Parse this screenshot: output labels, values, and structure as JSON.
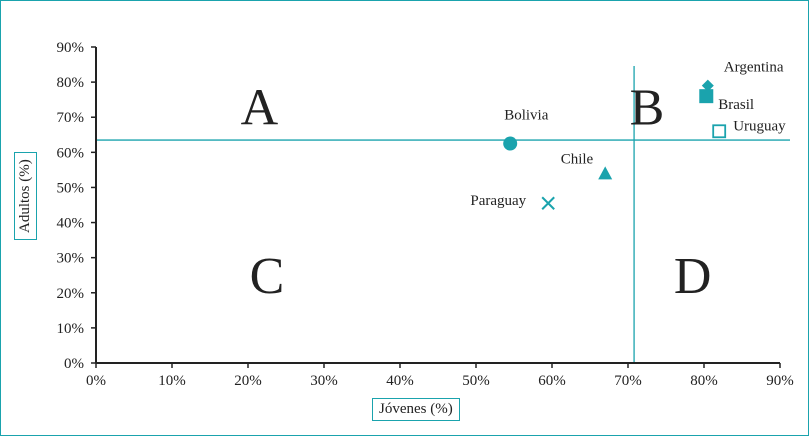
{
  "chart_data": {
    "type": "scatter",
    "xlabel": "Jóvenes (%)",
    "ylabel": "Adultos (%)",
    "xlim": [
      0,
      90
    ],
    "ylim": [
      0,
      90
    ],
    "x_ticks": [
      "0%",
      "10%",
      "20%",
      "30%",
      "40%",
      "50%",
      "60%",
      "70%",
      "80%",
      "90%"
    ],
    "y_ticks": [
      "0%",
      "10%",
      "20%",
      "30%",
      "40%",
      "50%",
      "60%",
      "70%",
      "80%",
      "90%"
    ],
    "points": [
      {
        "label": "Argentina",
        "x": 80.5,
        "y": 79,
        "marker": "diamond"
      },
      {
        "label": "Brasil",
        "x": 80.3,
        "y": 76,
        "marker": "square"
      },
      {
        "label": "Uruguay",
        "x": 82,
        "y": 66,
        "marker": "square-open"
      },
      {
        "label": "Bolivia",
        "x": 54.5,
        "y": 62.5,
        "marker": "circle"
      },
      {
        "label": "Chile",
        "x": 67,
        "y": 54,
        "marker": "triangle"
      },
      {
        "label": "Paraguay",
        "x": 59.5,
        "y": 45.5,
        "marker": "x"
      }
    ],
    "reference_lines": {
      "vertical_x": 70.8,
      "horizontal_y": 63.5
    },
    "quadrants": [
      {
        "label": "A",
        "x": 21.5,
        "y": 73
      },
      {
        "label": "B",
        "x": 72.5,
        "y": 73
      },
      {
        "label": "C",
        "x": 22.5,
        "y": 25
      },
      {
        "label": "D",
        "x": 78.5,
        "y": 25
      }
    ],
    "grid": false,
    "colors": {
      "marker": "#1aa3ad",
      "axis": "#222222",
      "frame": "#1aa3ad"
    }
  }
}
